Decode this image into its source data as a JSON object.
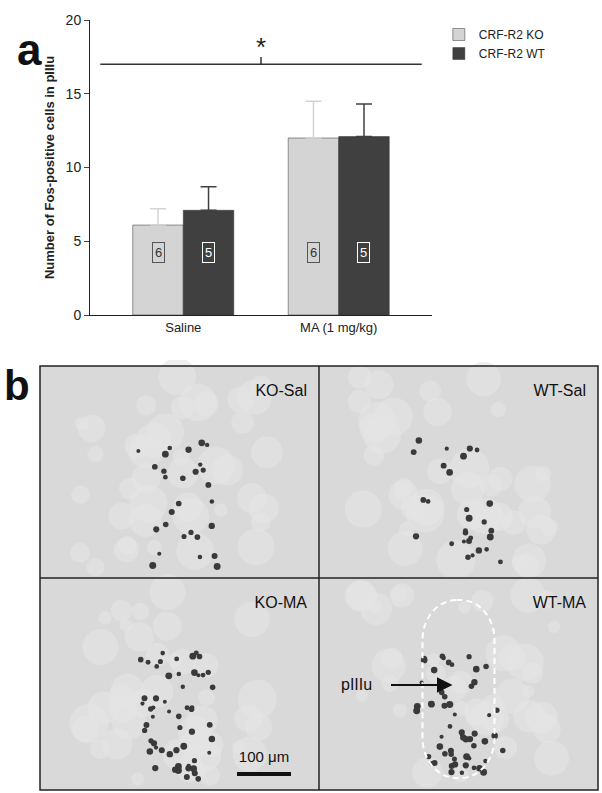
{
  "chart_data": {
    "type": "bar",
    "panel_label": "a",
    "categories": [
      "Saline",
      "MA (1 mg/kg)"
    ],
    "series": [
      {
        "name": "CRF-R2 KO",
        "color": "#d4d4d4",
        "values": [
          6.1,
          12.0
        ],
        "errors": [
          1.1,
          2.5
        ],
        "n": [
          6,
          6
        ]
      },
      {
        "name": "CRF-R2 WT",
        "color": "#404040",
        "values": [
          7.1,
          12.1
        ],
        "errors": [
          1.6,
          2.2
        ],
        "n": [
          5,
          5
        ]
      }
    ],
    "y_label": "Number of Fos-positive cells in pIIIu",
    "ylim": [
      0,
      20
    ],
    "yticks": [
      0,
      5,
      10,
      15,
      20
    ],
    "annotations": [
      "*"
    ],
    "legend": "upper right"
  },
  "images": {
    "panel_label": "b",
    "panels": [
      "KO-Sal",
      "WT-Sal",
      "KO-MA",
      "WT-MA"
    ],
    "region_label": "pIIIu",
    "scale_bar": "100 μm"
  }
}
